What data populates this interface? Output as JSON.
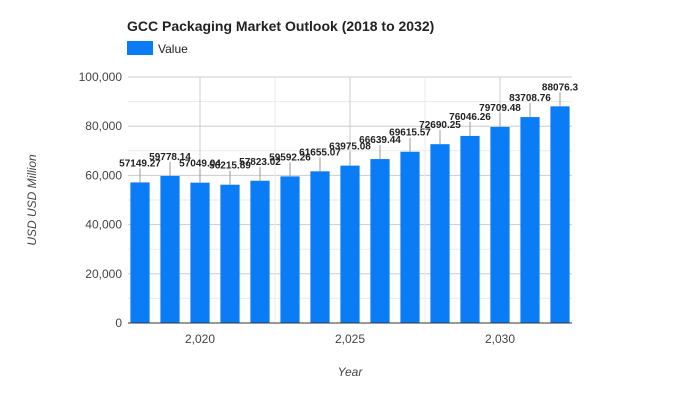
{
  "chart_data": {
    "type": "bar",
    "title": "GCC Packaging Market Outlook (2018 to 2032)",
    "xlabel": "Year",
    "ylabel": "USD USD Million",
    "ylim": [
      0,
      100000
    ],
    "xlim": [
      2017.6,
      2032.4
    ],
    "y_ticks": [
      0,
      20000,
      40000,
      60000,
      80000,
      100000
    ],
    "y_tick_labels": [
      "0",
      "20,000",
      "40,000",
      "60,000",
      "80,000",
      "100,000"
    ],
    "x_ticks": [
      2020,
      2025,
      2030
    ],
    "x_tick_labels": [
      "2,020",
      "2,025",
      "2,030"
    ],
    "legend": {
      "label": "Value",
      "placement": "top-left"
    },
    "color": "#0a7cf5",
    "x": [
      2018,
      2019,
      2020,
      2021,
      2022,
      2023,
      2024,
      2025,
      2026,
      2027,
      2028,
      2029,
      2030,
      2031,
      2032
    ],
    "series": [
      {
        "name": "Value",
        "values": [
          57149.27,
          59778.14,
          57049.04,
          56215.89,
          57823.02,
          59592.26,
          61655.07,
          63975.08,
          66639.44,
          69615.57,
          72690.25,
          76046.26,
          79709.48,
          83708.76,
          88076.3
        ],
        "labels": [
          "57149.27",
          "59778.14",
          "57049.04",
          "56215.89",
          "57823.02",
          "59592.26",
          "61655.07",
          "63975.08",
          "66639.44",
          "69615.57",
          "72690.25",
          "76046.26",
          "79709.48",
          "83708.76",
          "88076.3"
        ]
      }
    ]
  }
}
